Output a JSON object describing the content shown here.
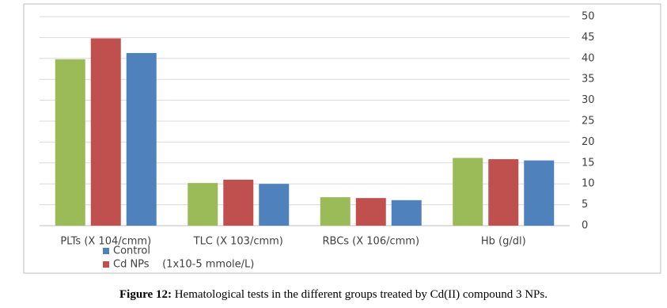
{
  "chart_data": {
    "type": "bar",
    "categories": [
      "PLTs (X 104/cmm)",
      "TLC (X 103/cmm)",
      "RBCs (X 106/cmm)",
      "Hb (g/dl)"
    ],
    "series": [
      {
        "color": "#9bbb59",
        "values": [
          39.8,
          10.2,
          6.8,
          16.2
        ]
      },
      {
        "name": "Cd NPs    (1x10-5 mmole/L)",
        "color": "#c0504d",
        "values": [
          44.8,
          11,
          6.6,
          15.9
        ]
      },
      {
        "name": "Control",
        "color": "#4f81bd",
        "values": [
          41.3,
          10,
          6.1,
          15.6
        ]
      }
    ],
    "ylim": [
      0,
      50
    ],
    "yticks": [
      0,
      5,
      10,
      15,
      20,
      25,
      30,
      35,
      40,
      45,
      50
    ],
    "grid": true,
    "y_axis_side": "right"
  },
  "caption": {
    "label": "Figure 12:",
    "text": " Hematological tests in the different groups treated by Cd(II) compound 3 NPs."
  }
}
